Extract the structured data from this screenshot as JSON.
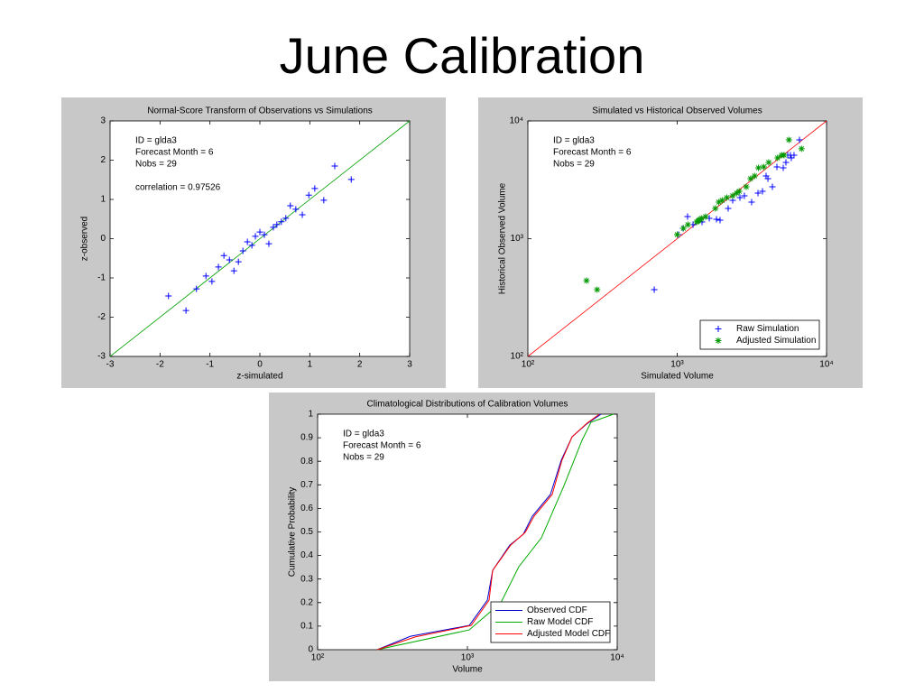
{
  "title": "June Calibration",
  "chart_data": [
    {
      "type": "scatter",
      "title": "Normal-Score Transform of Observations vs Simulations",
      "xlabel": "z-simulated",
      "ylabel": "z-observed",
      "annotations": [
        "ID = glda3",
        "Forecast Month = 6",
        "Nobs = 29"
      ],
      "note": "correlation = 0.97526",
      "xlim": [
        -3,
        3
      ],
      "ylim": [
        -3,
        3
      ],
      "xticks": [
        -3,
        -2,
        -1,
        0,
        1,
        2,
        3
      ],
      "yticks": [
        -3,
        -2,
        -1,
        0,
        1,
        2,
        3
      ],
      "xscale": "linear",
      "yscale": "linear",
      "ref_line_color": "#00a000",
      "series": [
        {
          "color": "#0000ff",
          "marker": "+",
          "x": [
            -1.83,
            -1.48,
            -1.27,
            -1.08,
            -0.96,
            -0.83,
            -0.72,
            -0.61,
            -0.52,
            -0.43,
            -0.34,
            -0.25,
            -0.16,
            -0.09,
            0,
            0.09,
            0.18,
            0.27,
            0.34,
            0.43,
            0.52,
            0.61,
            0.72,
            0.85,
            0.98,
            1.1,
            1.28,
            1.5,
            1.83
          ],
          "values": [
            -1.46,
            -1.83,
            -1.28,
            -0.95,
            -1.09,
            -0.72,
            -0.43,
            -0.54,
            -0.82,
            -0.59,
            -0.31,
            -0.08,
            -0.17,
            0.06,
            0.17,
            0.1,
            -0.13,
            0.29,
            0.36,
            0.43,
            0.52,
            0.84,
            0.75,
            0.61,
            1.11,
            1.28,
            0.98,
            1.85,
            1.51
          ]
        }
      ]
    },
    {
      "type": "scatter",
      "title": "Simulated vs Historical Observed Volumes",
      "xlabel": "Simulated Volume",
      "ylabel": "Historical Observed Volume",
      "annotations": [
        "ID = glda3",
        "Forecast Month = 6",
        "Nobs = 29"
      ],
      "xlim": [
        100,
        10000
      ],
      "ylim": [
        100,
        10000
      ],
      "xticks": [
        {
          "value": 100,
          "label": "10²"
        },
        {
          "value": 1000,
          "label": "10³"
        },
        {
          "value": 10000,
          "label": "10⁴"
        }
      ],
      "yticks": [
        {
          "value": 100,
          "label": "10²"
        },
        {
          "value": 1000,
          "label": "10³"
        },
        {
          "value": 10000,
          "label": "10⁴"
        }
      ],
      "xscale": "log",
      "yscale": "log",
      "ref_line_color": "#ff0000",
      "legend": "lower right",
      "series": [
        {
          "name": "Raw Simulation",
          "color": "#0000ff",
          "marker": "+",
          "x": [
            247,
            702,
            1021,
            1094,
            1173,
            1276,
            1387,
            1466,
            1640,
            1832,
            1936,
            2194,
            2353,
            2630,
            2818,
            3150,
            3475,
            3724,
            3936,
            4050,
            4339,
            4653,
            5129,
            5346,
            5497,
            5730,
            5808,
            6056,
            6586
          ],
          "values": [
            440,
            369,
            1082,
            1225,
            1541,
            1315,
            1410,
            1386,
            1487,
            1462,
            1436,
            1805,
            2116,
            2232,
            2312,
            2043,
            2439,
            2525,
            3409,
            3233,
            2758,
            4064,
            3998,
            4443,
            5115,
            5115,
            4849,
            5115,
            6903
          ]
        },
        {
          "name": "Adjusted Simulation",
          "color": "#009900",
          "marker": "*",
          "x": [
            247,
            291,
            1000,
            1100,
            1180,
            1350,
            1380,
            1400,
            1430,
            1460,
            1550,
            1800,
            1900,
            2000,
            2150,
            2350,
            2500,
            2600,
            2900,
            3100,
            3300,
            3500,
            3800,
            4100,
            4700,
            5000,
            5200,
            5600,
            6800
          ],
          "values": [
            440,
            369,
            1082,
            1225,
            1315,
            1386,
            1410,
            1436,
            1462,
            1487,
            1541,
            1805,
            2043,
            2116,
            2232,
            2312,
            2439,
            2525,
            2758,
            3233,
            3409,
            3998,
            4064,
            4443,
            4849,
            5115,
            5115,
            6903,
            5800
          ]
        }
      ]
    },
    {
      "type": "line",
      "title": "Climatological Distributions of Calibration Volumes",
      "xlabel": "Volume",
      "ylabel": "Cumulative Probability",
      "annotations": [
        "ID = glda3",
        "Forecast Month = 6",
        "Nobs = 29"
      ],
      "xlim": [
        100,
        10000
      ],
      "ylim": [
        0,
        1
      ],
      "xticks": [
        {
          "value": 100,
          "label": "10²"
        },
        {
          "value": 1000,
          "label": "10³"
        },
        {
          "value": 10000,
          "label": "10⁴"
        }
      ],
      "yticks": [
        0,
        0.1,
        0.2,
        0.3,
        0.4,
        0.5,
        0.6,
        0.7,
        0.8,
        0.9,
        1
      ],
      "xscale": "log",
      "yscale": "linear",
      "legend": "lower right",
      "series": [
        {
          "name": "Observed CDF",
          "color": "#0000cc",
          "x": [
            250,
            417,
            1028,
            1358,
            1475,
            1919,
            2360,
            2714,
            3581,
            4233,
            5000,
            6237,
            7798
          ],
          "values": [
            0,
            0.057,
            0.103,
            0.21,
            0.337,
            0.444,
            0.49,
            0.567,
            0.659,
            0.805,
            0.904,
            0.958,
            1
          ]
        },
        {
          "name": "Raw Model CDF",
          "color": "#00aa00",
          "x": [
            250,
            1028,
            1671,
            2203,
            3119,
            4416,
            5821,
            6683,
            9462
          ],
          "values": [
            0,
            0.084,
            0.199,
            0.352,
            0.475,
            0.697,
            0.889,
            0.966,
            1
          ]
        },
        {
          "name": "Adjusted Model CDF",
          "color": "#ff0000",
          "x": [
            250,
            448,
            1059,
            1395,
            1475,
            1944,
            2432,
            2787,
            3681,
            4281,
            5000,
            6300,
            7603
          ],
          "values": [
            0,
            0.054,
            0.103,
            0.21,
            0.337,
            0.444,
            0.498,
            0.567,
            0.659,
            0.805,
            0.904,
            0.962,
            1
          ]
        }
      ]
    }
  ]
}
